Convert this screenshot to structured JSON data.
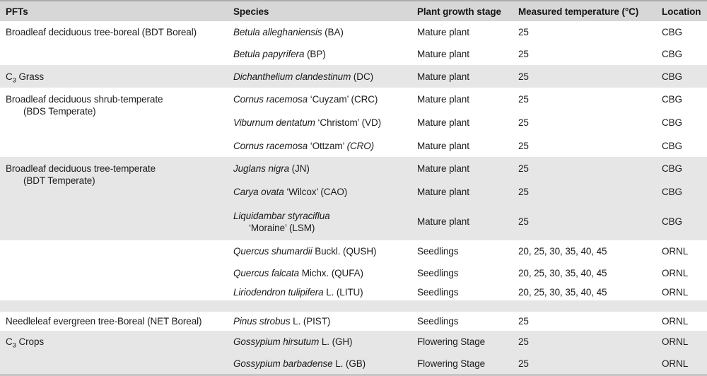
{
  "colors": {
    "header_bg": "#d7d7d7",
    "stripe_bg": "#e6e6e6",
    "top_border": "#adadad",
    "bottom_border": "#c6c6c6",
    "text": "#1c1c1c"
  },
  "table": {
    "columns": [
      "PFTs",
      "Species",
      "Plant growth stage",
      "Measured temperature (°C)",
      "Location"
    ],
    "rows": [
      {
        "pft": {
          "main": "Broadleaf deciduous tree-boreal (BDT Boreal)"
        },
        "species": {
          "i1": "Betula alleghaniensis",
          "r1": " (BA)"
        },
        "stage": "Mature plant",
        "temp": "25",
        "loc": "CBG"
      },
      {
        "species": {
          "i1": "Betula papyrifera",
          "r1": " (BP)"
        },
        "stage": "Mature plant",
        "temp": "25",
        "loc": "CBG"
      },
      {
        "pft": {
          "c": "C",
          "sub": "3",
          "rest": " Grass"
        },
        "species": {
          "i1": "Dichanthelium clandestinum",
          "r1": " (DC)"
        },
        "stage": "Mature plant",
        "temp": "25",
        "loc": "CBG"
      },
      {
        "pft": {
          "line1": "Broadleaf deciduous shrub-temperate",
          "line2": "(BDS Temperate)"
        },
        "species": {
          "i1": "Cornus racemosa",
          "r1": " ‘Cuyzam’ (CRC)"
        },
        "stage": "Mature plant",
        "temp": "25",
        "loc": "CBG"
      },
      {
        "species": {
          "i1": "Viburnum dentatum",
          "r1": " ‘Christom’ (VD)"
        },
        "stage": "Mature plant",
        "temp": "25",
        "loc": "CBG"
      },
      {
        "species": {
          "i1": "Cornus racemosa",
          "r1": " ‘Ottzam’ ",
          "i2": "(CRO)"
        },
        "stage": "Mature plant",
        "temp": "25",
        "loc": "CBG"
      },
      {
        "pft": {
          "line1": "Broadleaf deciduous tree-temperate",
          "line2": "(BDT Temperate)"
        },
        "species": {
          "i1": "Juglans nigra",
          "r1": " (JN)"
        },
        "stage": "Mature plant",
        "temp": "25",
        "loc": "CBG"
      },
      {
        "species": {
          "i1": "Carya ovata",
          "r1": " ‘Wilcox’ (CAO)"
        },
        "stage": "Mature plant",
        "temp": "25",
        "loc": "CBG"
      },
      {
        "species": {
          "i1": "Liquidambar styraciflua",
          "line2": "‘Moraine’ (LSM)"
        },
        "stage": "Mature plant",
        "temp": "25",
        "loc": "CBG"
      },
      {
        "species": {
          "i1": "Quercus shumardii",
          "r1": " Buckl. (QUSH)"
        },
        "stage": "Seedlings",
        "temp": "20, 25, 30, 35, 40, 45",
        "loc": "ORNL"
      },
      {
        "species": {
          "i1": "Quercus falcata",
          "r1": " Michx. (QUFA)"
        },
        "stage": "Seedlings",
        "temp": "20, 25, 30, 35, 40, 45",
        "loc": "ORNL"
      },
      {
        "species": {
          "i1": "Liriodendron tulipifera",
          "r1": " L. (LITU)"
        },
        "stage": "Seedlings",
        "temp": "20, 25, 30, 35, 40, 45",
        "loc": "ORNL"
      },
      {
        "pft": {
          "main": "Needleleaf evergreen tree-Boreal (NET Boreal)"
        },
        "species": {
          "i1": "Pinus strobus",
          "r1": " L. (PIST)"
        },
        "stage": "Seedlings",
        "temp": "25",
        "loc": "ORNL"
      },
      {
        "pft": {
          "c": "C",
          "sub": "3",
          "rest": " Crops"
        },
        "species": {
          "i1": "Gossypium hirsutum",
          "r1": " L. (GH)"
        },
        "stage": "Flowering Stage",
        "temp": "25",
        "loc": "ORNL"
      },
      {
        "species": {
          "i1": "Gossypium barbadense",
          "r1": " L. (GB)"
        },
        "stage": "Flowering Stage",
        "temp": "25",
        "loc": "ORNL"
      }
    ]
  }
}
